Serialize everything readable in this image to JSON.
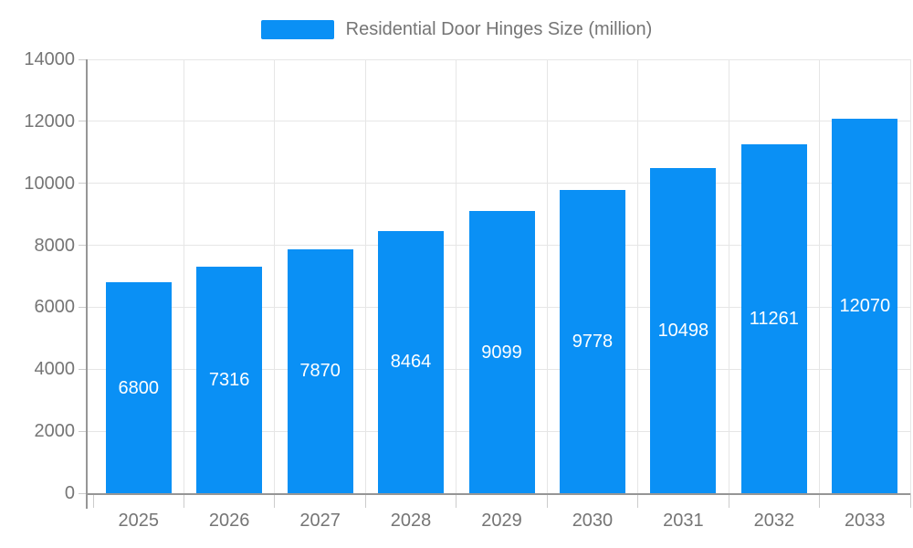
{
  "legend": {
    "label": "Residential Door Hinges Size (million)"
  },
  "chart_data": {
    "type": "bar",
    "title": "",
    "xlabel": "",
    "ylabel": "",
    "categories": [
      "2025",
      "2026",
      "2027",
      "2028",
      "2029",
      "2030",
      "2031",
      "2032",
      "2033"
    ],
    "series": [
      {
        "name": "Residential Door Hinges Size (million)",
        "values": [
          6800,
          7316,
          7870,
          8464,
          9099,
          9778,
          10498,
          11261,
          12070
        ]
      }
    ],
    "value_labels_shown": true,
    "ylim": [
      0,
      14000
    ],
    "yticks": [
      0,
      2000,
      4000,
      6000,
      8000,
      10000,
      12000,
      14000
    ],
    "grid": true,
    "legend_position": "top-center",
    "colors": {
      "bar": "#0A90F5",
      "value_label": "#ffffff",
      "axis_text": "#757575",
      "gridline": "#e6e6e6",
      "axis_line": "#969696",
      "tick": "#cccccc",
      "background": "#ffffff"
    }
  }
}
